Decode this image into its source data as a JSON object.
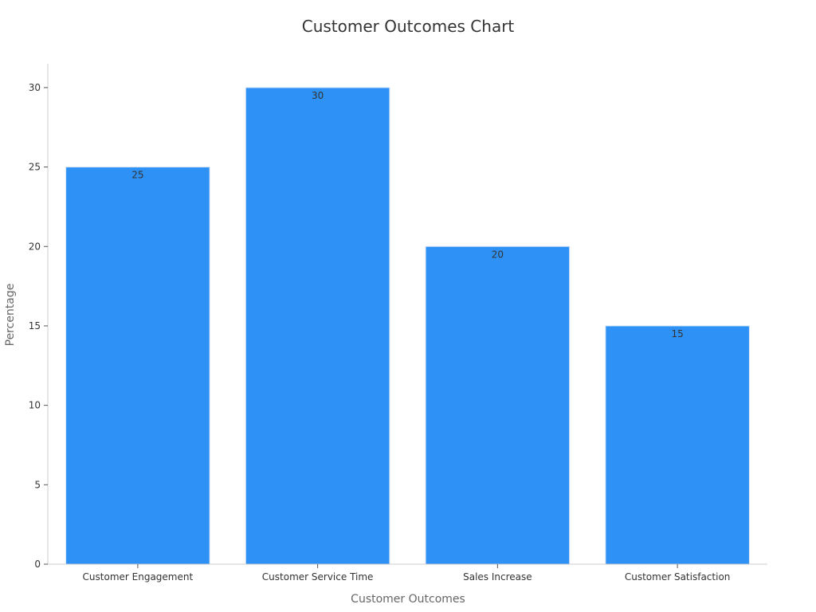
{
  "chart_data": {
    "type": "bar",
    "title": "Customer Outcomes Chart",
    "xlabel": "Customer Outcomes",
    "ylabel": "Percentage",
    "categories": [
      "Customer Engagement",
      "Customer Service Time",
      "Sales Increase",
      "Customer Satisfaction"
    ],
    "values": [
      25,
      30,
      20,
      15
    ],
    "ylim": [
      0,
      31.5
    ],
    "yticks": [
      0,
      5,
      10,
      15,
      20,
      25,
      30
    ],
    "grid": false,
    "data_labels": true,
    "colors": {
      "bar": "#2e91f6",
      "bar_edge": "#d9e6f5",
      "axis": "#cccccc",
      "tick": "#555555"
    }
  }
}
